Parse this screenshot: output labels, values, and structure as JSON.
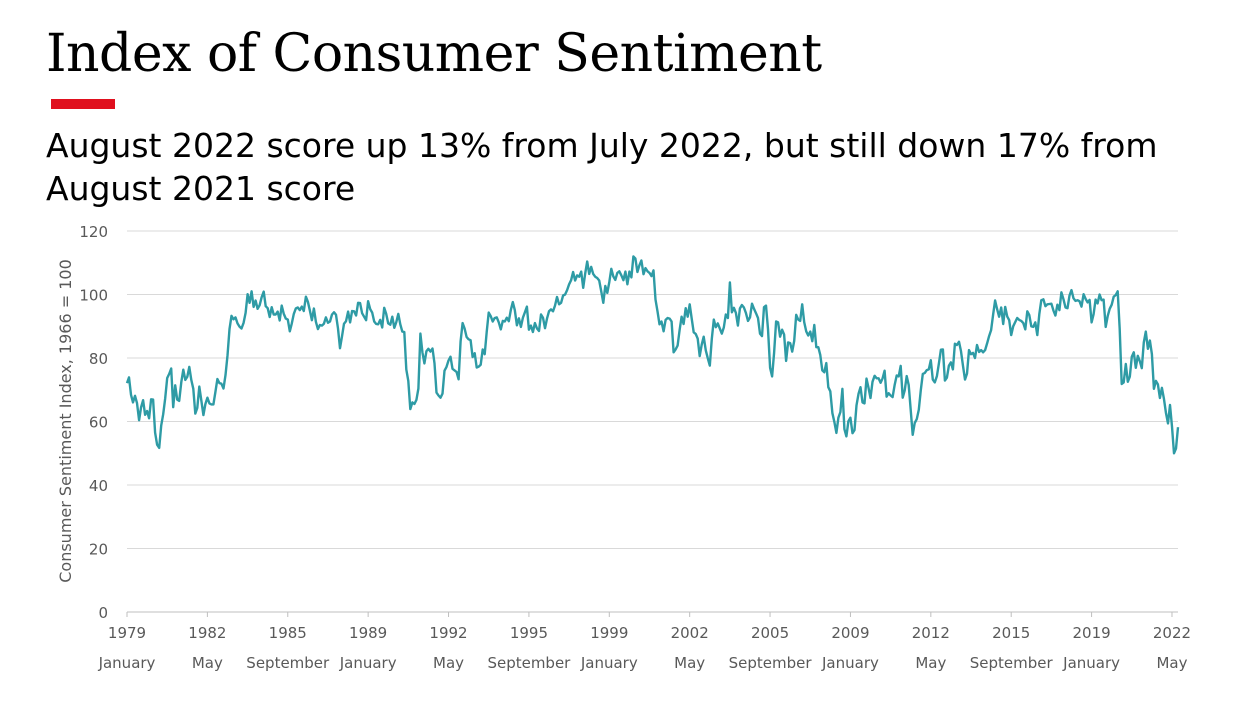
{
  "slide": {
    "title": "Index of Consumer Sentiment",
    "subtitle": "August 2022 score up 13% from July 2022, but still down 17% from August 2021 score",
    "accent_color": "#e0101e"
  },
  "chart_data": {
    "type": "line",
    "title": "",
    "ylabel": "Consumer Sentiment Index, 1966 = 100",
    "xlabel": "",
    "ylim": [
      0,
      120
    ],
    "yticks": [
      0,
      20,
      40,
      60,
      80,
      100,
      120
    ],
    "xlim": [
      "1979-01",
      "2022-08"
    ],
    "xticks": [
      {
        "year": "1979",
        "month": "January"
      },
      {
        "year": "1982",
        "month": "May"
      },
      {
        "year": "1985",
        "month": "September"
      },
      {
        "year": "1989",
        "month": "January"
      },
      {
        "year": "1992",
        "month": "May"
      },
      {
        "year": "1995",
        "month": "September"
      },
      {
        "year": "1999",
        "month": "January"
      },
      {
        "year": "2002",
        "month": "May"
      },
      {
        "year": "2005",
        "month": "September"
      },
      {
        "year": "2009",
        "month": "January"
      },
      {
        "year": "2012",
        "month": "May"
      },
      {
        "year": "2015",
        "month": "September"
      },
      {
        "year": "2019",
        "month": "January"
      },
      {
        "year": "2022",
        "month": "May"
      }
    ],
    "grid": "horizontal",
    "legend": "none",
    "line_color": "#2e9ba5",
    "grid_color": "#d9d9d9",
    "frequency": "monthly",
    "monthly_values_by_year": {
      "1979": [
        72.1,
        73.9,
        68.4,
        66.0,
        68.1,
        65.8,
        60.4,
        64.5,
        66.7,
        62.1,
        63.3,
        61.0
      ],
      "1980": [
        67.0,
        66.9,
        56.5,
        52.7,
        51.7,
        58.7,
        62.3,
        67.3,
        73.7,
        75.0,
        76.7,
        64.5
      ],
      "1981": [
        71.4,
        66.9,
        66.5,
        72.4,
        76.3,
        73.1,
        74.1,
        77.2,
        73.1,
        70.3,
        62.5,
        64.3
      ],
      "1982": [
        71.0,
        66.5,
        62.0,
        65.5,
        67.5,
        65.7,
        65.4,
        65.4,
        69.3,
        73.4,
        72.1,
        71.9
      ],
      "1983": [
        70.4,
        74.6,
        80.8,
        89.1,
        93.3,
        92.2,
        92.8,
        90.9,
        89.9,
        89.3,
        91.1,
        94.2
      ],
      "1984": [
        100.1,
        97.4,
        101.0,
        96.1,
        98.1,
        95.5,
        96.6,
        99.1,
        100.9,
        96.3,
        95.7,
        92.9
      ],
      "1985": [
        96.0,
        93.7,
        93.7,
        94.6,
        91.8,
        96.5,
        94.0,
        92.4,
        92.1,
        88.4,
        90.9,
        93.9
      ],
      "1986": [
        95.6,
        95.9,
        95.1,
        96.2,
        94.8,
        99.3,
        97.7,
        94.9,
        91.9,
        95.6,
        91.4,
        89.1
      ],
      "1987": [
        90.4,
        90.2,
        90.8,
        92.8,
        91.1,
        91.5,
        93.7,
        94.4,
        93.6,
        89.3,
        83.1,
        86.8
      ],
      "1988": [
        90.8,
        91.6,
        94.6,
        91.2,
        94.8,
        94.7,
        93.4,
        97.4,
        97.3,
        94.1,
        93.0,
        91.9
      ],
      "1989": [
        97.9,
        95.4,
        94.3,
        91.5,
        90.7,
        90.6,
        92.0,
        89.6,
        95.8,
        93.9,
        90.9,
        90.5
      ],
      "1990": [
        93.0,
        89.5,
        91.3,
        93.9,
        90.6,
        88.3,
        88.2,
        76.4,
        72.8,
        63.9,
        66.0,
        65.5
      ],
      "1991": [
        66.8,
        70.4,
        87.7,
        81.8,
        78.3,
        82.1,
        82.9,
        82.0,
        83.0,
        78.3,
        69.1,
        68.2
      ],
      "1992": [
        67.5,
        68.8,
        76.0,
        77.2,
        79.2,
        80.4,
        76.6,
        76.1,
        75.6,
        73.3,
        85.3,
        91.0
      ],
      "1993": [
        89.3,
        86.6,
        85.9,
        85.6,
        80.3,
        81.5,
        77.0,
        77.3,
        77.9,
        82.7,
        81.2,
        88.2
      ],
      "1994": [
        94.3,
        93.2,
        91.5,
        92.6,
        92.8,
        91.2,
        89.0,
        91.7,
        91.5,
        92.7,
        91.6,
        95.1
      ],
      "1995": [
        97.6,
        95.1,
        90.3,
        92.5,
        89.8,
        92.7,
        94.4,
        96.2,
        88.9,
        90.2,
        88.2,
        91.0
      ],
      "1996": [
        89.3,
        88.5,
        93.7,
        92.7,
        89.4,
        92.4,
        94.7,
        95.3,
        94.7,
        96.5,
        99.2,
        96.9
      ],
      "1997": [
        97.4,
        99.7,
        100.0,
        101.4,
        103.2,
        104.5,
        107.1,
        104.4,
        106.0,
        105.6,
        107.2,
        102.1
      ],
      "1998": [
        106.6,
        110.4,
        106.5,
        108.7,
        106.5,
        105.6,
        105.2,
        104.4,
        100.9,
        97.4,
        102.7,
        100.5
      ],
      "1999": [
        103.9,
        108.1,
        105.7,
        104.6,
        106.8,
        107.3,
        106.0,
        104.5,
        107.2,
        103.2,
        107.2,
        105.4
      ],
      "2000": [
        112.0,
        111.3,
        107.1,
        109.2,
        110.7,
        106.4,
        108.3,
        107.3,
        106.8,
        105.8,
        107.6,
        98.4
      ],
      "2001": [
        94.7,
        90.6,
        91.5,
        88.4,
        92.0,
        92.6,
        92.4,
        91.5,
        81.8,
        82.7,
        83.9,
        88.8
      ],
      "2002": [
        93.0,
        90.7,
        95.7,
        93.0,
        96.9,
        92.4,
        88.1,
        87.6,
        86.1,
        80.6,
        84.2,
        86.7
      ],
      "2003": [
        82.4,
        79.9,
        77.6,
        86.0,
        92.1,
        89.7,
        90.9,
        89.3,
        87.7,
        89.6,
        93.7,
        92.6
      ],
      "2004": [
        103.8,
        94.4,
        95.8,
        94.2,
        90.2,
        95.6,
        96.7,
        95.9,
        94.2,
        91.7,
        92.8,
        97.1
      ],
      "2005": [
        95.5,
        94.1,
        92.6,
        87.7,
        86.9,
        96.0,
        96.5,
        89.1,
        76.9,
        74.2,
        81.6,
        91.5
      ],
      "2006": [
        91.2,
        86.7,
        88.9,
        87.4,
        79.1,
        84.9,
        84.7,
        82.0,
        85.4,
        93.6,
        92.1,
        91.7
      ],
      "2007": [
        96.9,
        91.3,
        88.4,
        87.1,
        88.3,
        85.3,
        90.4,
        83.4,
        83.4,
        80.9,
        76.1,
        75.5
      ],
      "2008": [
        78.4,
        70.8,
        69.5,
        62.6,
        59.8,
        56.4,
        61.2,
        63.0,
        70.3,
        57.6,
        55.3,
        60.1
      ],
      "2009": [
        61.2,
        56.3,
        57.3,
        65.1,
        68.7,
        70.8,
        66.0,
        65.7,
        73.5,
        70.6,
        67.4,
        72.5
      ],
      "2010": [
        74.4,
        73.6,
        73.6,
        72.2,
        73.6,
        76.0,
        67.8,
        68.9,
        68.2,
        67.7,
        71.6,
        74.5
      ],
      "2011": [
        74.2,
        77.5,
        67.5,
        69.8,
        74.3,
        71.5,
        63.7,
        55.8,
        59.5,
        60.8,
        63.7,
        69.9
      ],
      "2012": [
        75.0,
        75.3,
        76.2,
        76.4,
        79.3,
        73.2,
        72.3,
        74.3,
        78.3,
        82.6,
        82.7,
        72.9
      ],
      "2013": [
        73.8,
        77.6,
        78.6,
        76.4,
        84.5,
        84.1,
        85.1,
        82.1,
        77.5,
        73.2,
        75.1,
        82.5
      ],
      "2014": [
        81.2,
        81.6,
        80.0,
        84.1,
        81.9,
        82.5,
        81.8,
        82.5,
        84.6,
        86.9,
        88.8,
        93.6
      ],
      "2015": [
        98.1,
        95.4,
        93.0,
        95.9,
        90.7,
        96.1,
        93.1,
        91.9,
        87.2,
        90.0,
        91.3,
        92.6
      ],
      "2016": [
        92.0,
        91.7,
        91.0,
        89.0,
        94.7,
        93.5,
        90.0,
        89.8,
        91.2,
        87.2,
        93.8,
        98.2
      ],
      "2017": [
        98.5,
        96.3,
        96.9,
        97.0,
        97.1,
        95.0,
        93.4,
        96.8,
        95.1,
        100.7,
        98.5,
        95.9
      ],
      "2018": [
        95.7,
        99.7,
        101.4,
        98.8,
        98.0,
        98.2,
        97.9,
        96.2,
        100.1,
        98.6,
        97.5,
        98.3
      ],
      "2019": [
        91.2,
        93.8,
        98.4,
        97.2,
        100.0,
        98.2,
        98.4,
        89.8,
        93.2,
        95.5,
        96.8,
        99.3
      ],
      "2020": [
        99.8,
        101.0,
        89.1,
        71.8,
        72.3,
        78.1,
        72.5,
        74.1,
        80.4,
        81.8,
        76.9,
        80.7
      ],
      "2021": [
        79.0,
        76.8,
        84.9,
        88.3,
        82.9,
        85.5,
        81.2,
        70.3,
        72.8,
        71.7,
        67.4,
        70.6
      ],
      "2022": [
        67.2,
        62.8,
        59.4,
        65.2,
        58.4,
        50.0,
        51.5,
        58.2
      ]
    }
  }
}
